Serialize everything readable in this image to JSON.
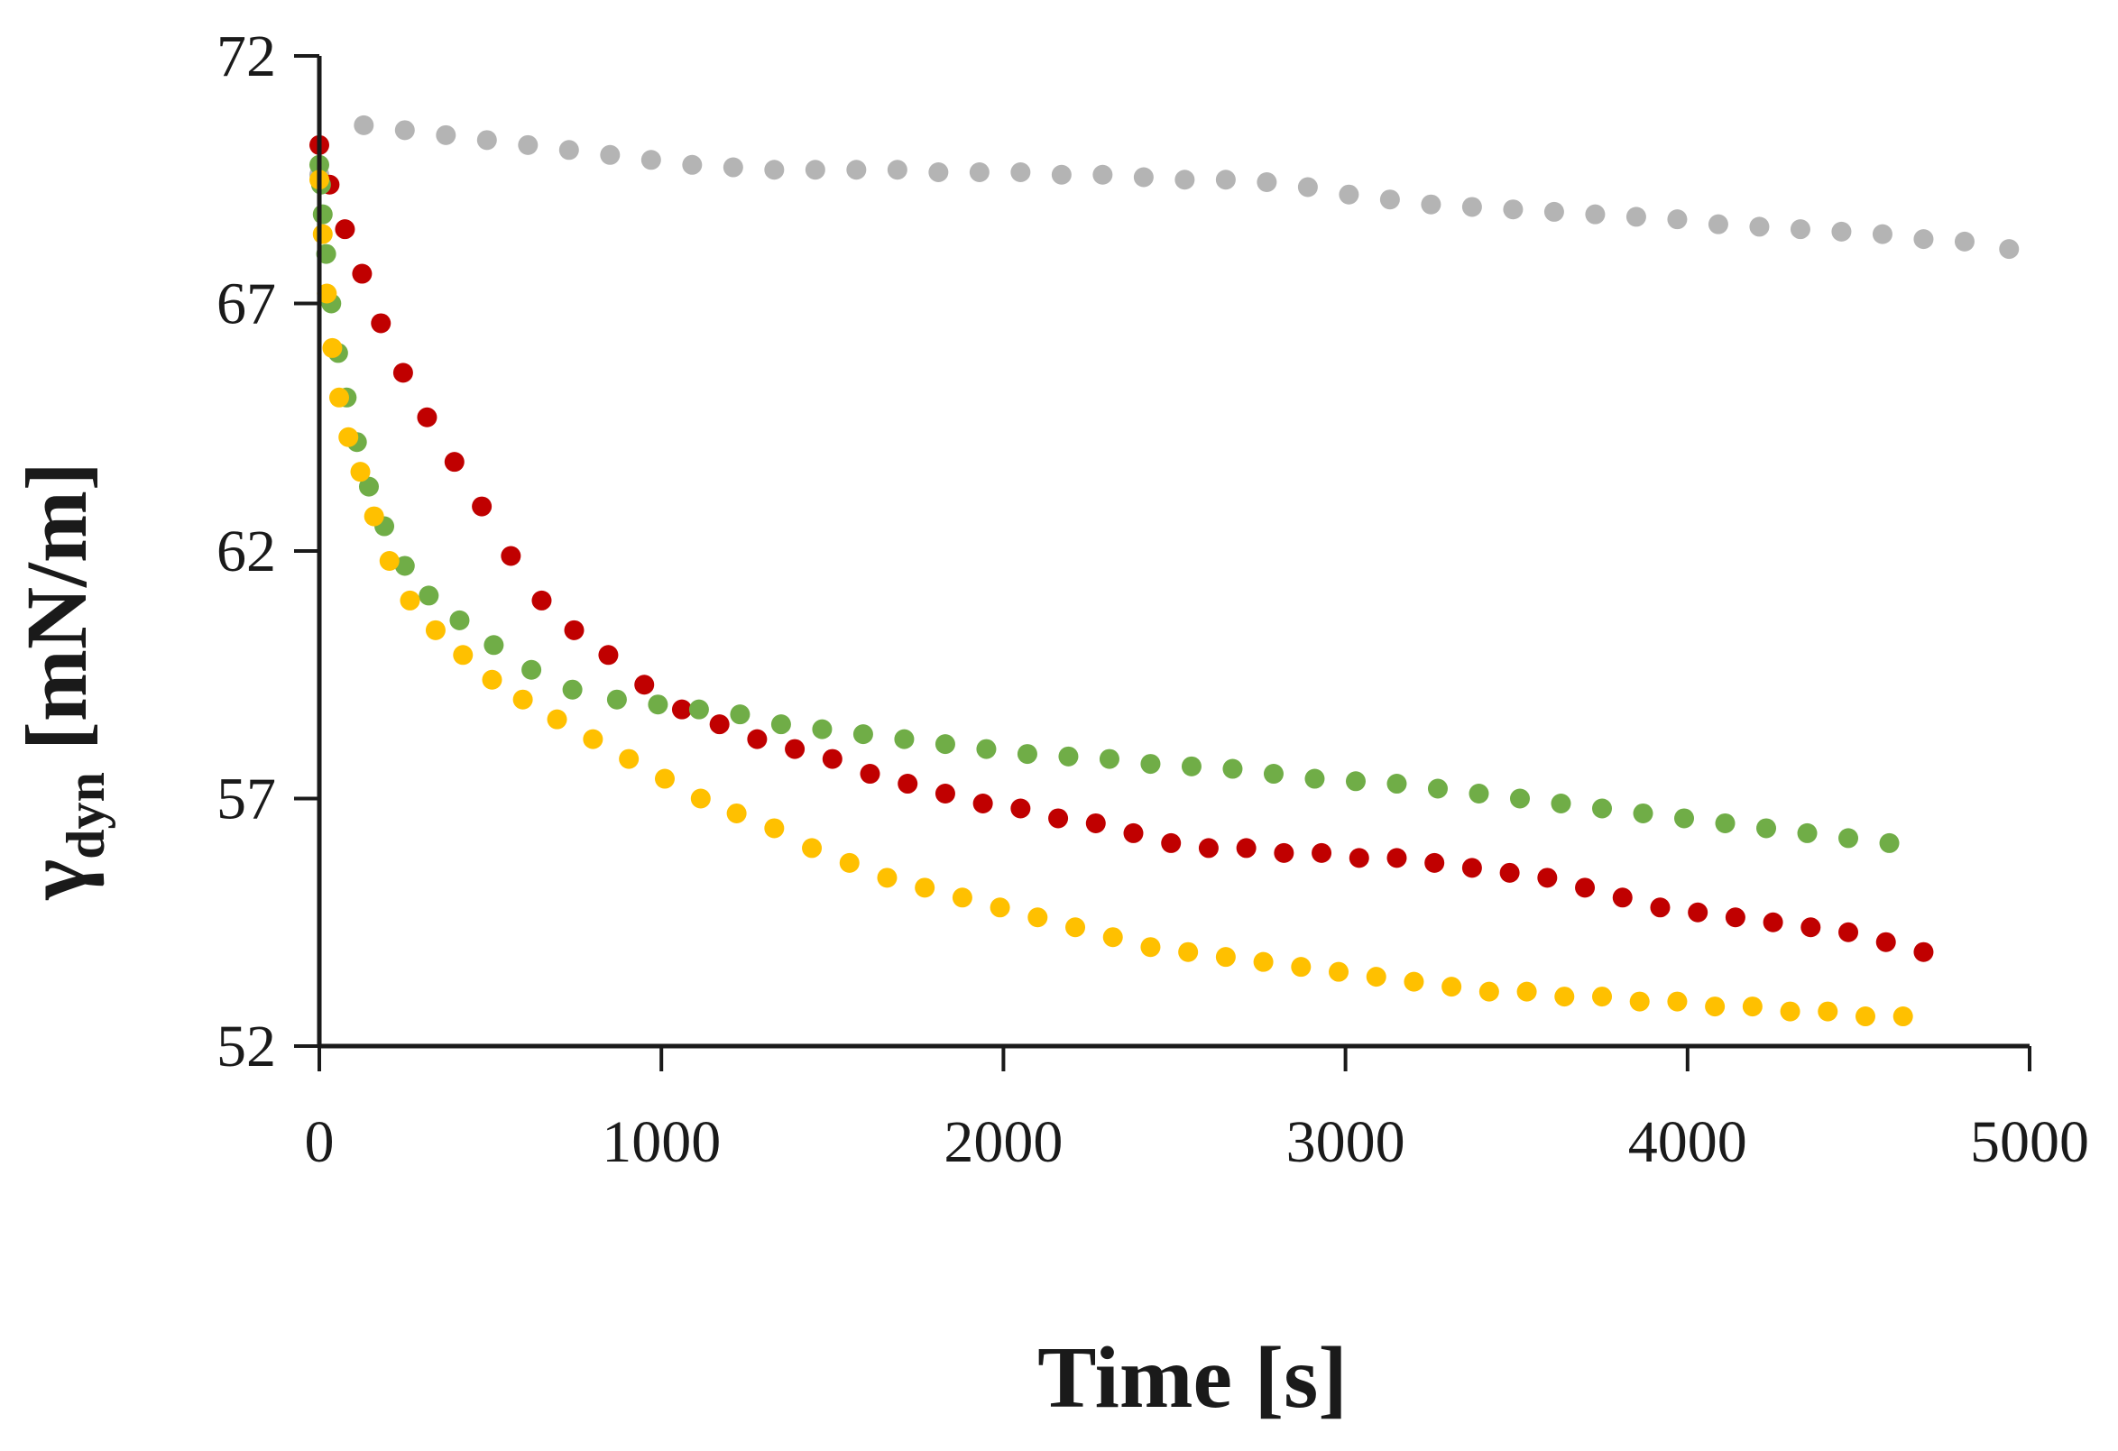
{
  "chart_data": {
    "type": "scatter",
    "title": "",
    "xlabel": "Time [s]",
    "ylabel": {
      "symbol": "γ",
      "subscript": "dyn",
      "unit": " [mN/m]"
    },
    "xlim": [
      0,
      5000
    ],
    "ylim": [
      52,
      72
    ],
    "xticks": [
      0,
      1000,
      2000,
      3000,
      4000,
      5000
    ],
    "yticks": [
      52,
      57,
      62,
      67,
      72
    ],
    "grid": false,
    "legend": "none",
    "series": [
      {
        "name": "grey",
        "color": "#b4b4b4",
        "x": [
          0,
          130,
          250,
          370,
          490,
          610,
          730,
          850,
          970,
          1090,
          1210,
          1330,
          1450,
          1570,
          1690,
          1810,
          1930,
          2050,
          2170,
          2290,
          2410,
          2530,
          2650,
          2770,
          2890,
          3010,
          3130,
          3250,
          3370,
          3490,
          3610,
          3730,
          3850,
          3970,
          4090,
          4210,
          4330,
          4450,
          4570,
          4690,
          4810,
          4940
        ],
        "y": [
          69.6,
          70.6,
          70.5,
          70.4,
          70.3,
          70.2,
          70.1,
          70.0,
          69.9,
          69.8,
          69.75,
          69.7,
          69.7,
          69.7,
          69.7,
          69.65,
          69.65,
          69.65,
          69.6,
          69.6,
          69.55,
          69.5,
          69.5,
          69.45,
          69.35,
          69.2,
          69.1,
          69.0,
          68.95,
          68.9,
          68.85,
          68.8,
          68.75,
          68.7,
          68.6,
          68.55,
          68.5,
          68.45,
          68.4,
          68.3,
          68.25,
          68.1
        ]
      },
      {
        "name": "red",
        "color": "#c00000",
        "x": [
          0,
          30,
          75,
          125,
          180,
          245,
          315,
          395,
          475,
          560,
          650,
          745,
          845,
          950,
          1060,
          1170,
          1280,
          1390,
          1500,
          1610,
          1720,
          1830,
          1940,
          2050,
          2160,
          2270,
          2380,
          2490,
          2600,
          2710,
          2820,
          2930,
          3040,
          3150,
          3260,
          3370,
          3480,
          3590,
          3700,
          3810,
          3920,
          4030,
          4140,
          4250,
          4360,
          4470,
          4580,
          4690
        ],
        "y": [
          70.2,
          69.4,
          68.5,
          67.6,
          66.6,
          65.6,
          64.7,
          63.8,
          62.9,
          61.9,
          61.0,
          60.4,
          59.9,
          59.3,
          58.8,
          58.5,
          58.2,
          58.0,
          57.8,
          57.5,
          57.3,
          57.1,
          56.9,
          56.8,
          56.6,
          56.5,
          56.3,
          56.1,
          56.0,
          56.0,
          55.9,
          55.9,
          55.8,
          55.8,
          55.7,
          55.6,
          55.5,
          55.4,
          55.2,
          55.0,
          54.8,
          54.7,
          54.6,
          54.5,
          54.4,
          54.3,
          54.1,
          53.9
        ]
      },
      {
        "name": "green",
        "color": "#70ad47",
        "x": [
          0,
          5,
          10,
          20,
          35,
          55,
          80,
          110,
          145,
          190,
          250,
          320,
          410,
          510,
          620,
          740,
          870,
          990,
          1110,
          1230,
          1350,
          1470,
          1590,
          1710,
          1830,
          1950,
          2070,
          2190,
          2310,
          2430,
          2550,
          2670,
          2790,
          2910,
          3030,
          3150,
          3270,
          3390,
          3510,
          3630,
          3750,
          3870,
          3990,
          4110,
          4230,
          4350,
          4470,
          4590
        ],
        "y": [
          69.8,
          69.4,
          68.8,
          68.0,
          67.0,
          66.0,
          65.1,
          64.2,
          63.3,
          62.5,
          61.7,
          61.1,
          60.6,
          60.1,
          59.6,
          59.2,
          59.0,
          58.9,
          58.8,
          58.7,
          58.5,
          58.4,
          58.3,
          58.2,
          58.1,
          58.0,
          57.9,
          57.85,
          57.8,
          57.7,
          57.65,
          57.6,
          57.5,
          57.4,
          57.35,
          57.3,
          57.2,
          57.1,
          57.0,
          56.9,
          56.8,
          56.7,
          56.6,
          56.5,
          56.4,
          56.3,
          56.2,
          56.1
        ]
      },
      {
        "name": "yellow",
        "color": "#ffc000",
        "x": [
          0,
          10,
          22,
          38,
          58,
          85,
          120,
          160,
          205,
          265,
          340,
          420,
          505,
          595,
          695,
          800,
          905,
          1010,
          1115,
          1220,
          1330,
          1440,
          1550,
          1660,
          1770,
          1880,
          1990,
          2100,
          2210,
          2320,
          2430,
          2540,
          2650,
          2760,
          2870,
          2980,
          3090,
          3200,
          3310,
          3420,
          3530,
          3640,
          3750,
          3860,
          3970,
          4080,
          4190,
          4300,
          4410,
          4520,
          4630
        ],
        "y": [
          69.5,
          68.4,
          67.2,
          66.1,
          65.1,
          64.3,
          63.6,
          62.7,
          61.8,
          61.0,
          60.4,
          59.9,
          59.4,
          59.0,
          58.6,
          58.2,
          57.8,
          57.4,
          57.0,
          56.7,
          56.4,
          56.0,
          55.7,
          55.4,
          55.2,
          55.0,
          54.8,
          54.6,
          54.4,
          54.2,
          54.0,
          53.9,
          53.8,
          53.7,
          53.6,
          53.5,
          53.4,
          53.3,
          53.2,
          53.1,
          53.1,
          53.0,
          53.0,
          52.9,
          52.9,
          52.8,
          52.8,
          52.7,
          52.7,
          52.6,
          52.6
        ]
      }
    ]
  }
}
